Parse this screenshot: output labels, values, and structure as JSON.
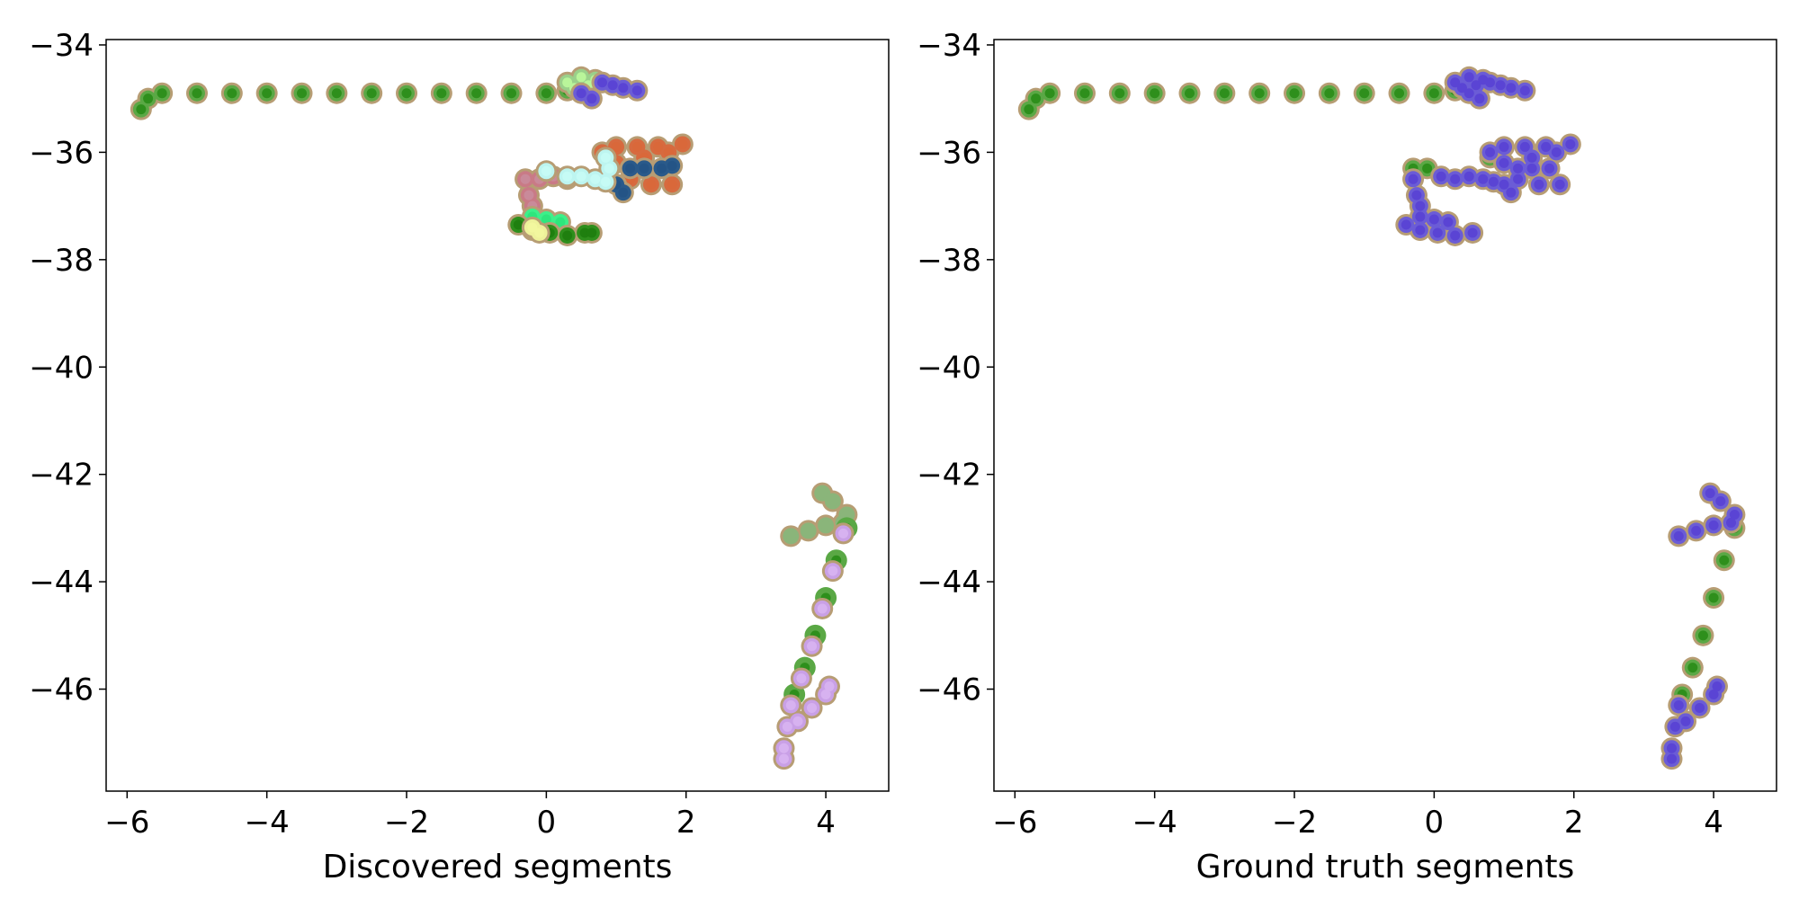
{
  "chart_data": [
    {
      "type": "scatter",
      "xlabel": "Discovered segments",
      "ylabel": "",
      "title": "",
      "xlim": [
        -6.3,
        4.9
      ],
      "ylim": [
        -47.9,
        -33.9
      ],
      "xticks": [
        -6,
        -4,
        -2,
        0,
        2,
        4
      ],
      "yticks": [
        -34,
        -36,
        -38,
        -40,
        -42,
        -44,
        -46
      ],
      "xtick_labels": [
        "−6",
        "−4",
        "−2",
        "0",
        "2",
        "4"
      ],
      "ytick_labels": [
        "−34",
        "−36",
        "−38",
        "−40",
        "−42",
        "−44",
        "−46"
      ],
      "grid": false,
      "series": [
        {
          "color": "#5aa845",
          "outline": "#b79d74",
          "inner": "#2e8f1c",
          "points": [
            [
              -5.8,
              -35.2
            ],
            [
              -5.7,
              -35.0
            ],
            [
              -5.5,
              -34.9
            ],
            [
              -5.0,
              -34.9
            ],
            [
              -4.5,
              -34.9
            ],
            [
              -4.0,
              -34.9
            ],
            [
              -3.5,
              -34.9
            ],
            [
              -3.0,
              -34.9
            ],
            [
              -2.5,
              -34.9
            ],
            [
              -2.0,
              -34.9
            ],
            [
              -1.5,
              -34.9
            ],
            [
              -1.0,
              -34.9
            ],
            [
              -0.5,
              -34.9
            ],
            [
              0.0,
              -34.9
            ],
            [
              0.3,
              -34.85
            ]
          ]
        },
        {
          "color": "#9ad08a",
          "outline": "#b79d74",
          "inner": "#b9f59a",
          "points": [
            [
              0.3,
              -34.7
            ],
            [
              0.4,
              -34.8
            ],
            [
              0.5,
              -34.6
            ],
            [
              0.6,
              -34.75
            ],
            [
              0.7,
              -34.65
            ],
            [
              0.8,
              -34.7
            ]
          ]
        },
        {
          "color": "#6b5cd6",
          "outline": "#b79d74",
          "inner": "#5a44d4",
          "points": [
            [
              0.8,
              -34.7
            ],
            [
              0.95,
              -34.75
            ],
            [
              1.1,
              -34.8
            ],
            [
              1.3,
              -34.85
            ],
            [
              0.5,
              -34.9
            ],
            [
              0.65,
              -35.0
            ]
          ]
        },
        {
          "color": "#d76a3f",
          "outline": "#b79d74",
          "inner": "#d9683a",
          "points": [
            [
              0.8,
              -36.0
            ],
            [
              1.0,
              -35.9
            ],
            [
              1.3,
              -35.9
            ],
            [
              1.6,
              -35.9
            ],
            [
              1.95,
              -35.85
            ],
            [
              1.0,
              -36.2
            ],
            [
              1.4,
              -36.1
            ],
            [
              1.75,
              -36.0
            ],
            [
              1.2,
              -36.5
            ],
            [
              1.5,
              -36.6
            ],
            [
              1.8,
              -36.6
            ]
          ]
        },
        {
          "color": "#2a5a8a",
          "outline": "#b79d74",
          "inner": "#245486",
          "points": [
            [
              1.2,
              -36.3
            ],
            [
              1.4,
              -36.3
            ],
            [
              1.65,
              -36.3
            ],
            [
              1.8,
              -36.25
            ],
            [
              1.0,
              -36.6
            ],
            [
              1.1,
              -36.75
            ]
          ]
        },
        {
          "color": "#c97a86",
          "outline": "#b79d74",
          "inner": "#c98a9a",
          "points": [
            [
              -0.3,
              -36.5
            ],
            [
              -0.25,
              -36.8
            ],
            [
              -0.2,
              -37.0
            ],
            [
              -0.1,
              -36.5
            ],
            [
              0.1,
              -36.45
            ],
            [
              0.3,
              -36.5
            ]
          ]
        },
        {
          "color": "#bdf5f0",
          "outline": "#b79d74",
          "inner": "#c6fbf5",
          "points": [
            [
              0.0,
              -36.35
            ],
            [
              0.3,
              -36.45
            ],
            [
              0.5,
              -36.45
            ],
            [
              0.7,
              -36.5
            ],
            [
              0.85,
              -36.55
            ],
            [
              0.9,
              -36.3
            ],
            [
              0.85,
              -36.1
            ]
          ]
        },
        {
          "color": "#3cf08a",
          "outline": "#b79d74",
          "inner": "#2ee67d",
          "points": [
            [
              -0.2,
              -37.2
            ],
            [
              0.0,
              -37.25
            ],
            [
              0.2,
              -37.3
            ]
          ]
        },
        {
          "color": "#2e8f1c",
          "outline": "#b79d74",
          "inner": "#1f7f0f",
          "points": [
            [
              -0.4,
              -37.35
            ],
            [
              -0.2,
              -37.45
            ],
            [
              0.05,
              -37.5
            ],
            [
              0.3,
              -37.55
            ],
            [
              0.55,
              -37.5
            ],
            [
              0.65,
              -37.5
            ]
          ]
        },
        {
          "color": "#eef29a",
          "outline": "#b79d74",
          "inner": "#f2f79e",
          "points": [
            [
              -0.2,
              -37.4
            ],
            [
              -0.1,
              -37.5
            ]
          ]
        },
        {
          "color": "#8ab57a",
          "outline": "#b79d74",
          "inner": "#8ab57a",
          "points": [
            [
              3.5,
              -43.15
            ],
            [
              3.75,
              -43.05
            ],
            [
              4.0,
              -42.95
            ],
            [
              4.25,
              -42.9
            ],
            [
              3.95,
              -42.35
            ],
            [
              4.1,
              -42.5
            ],
            [
              4.3,
              -42.75
            ]
          ]
        },
        {
          "color": "#5aa845",
          "outline": "#5aa845",
          "inner": "#2e8f1c",
          "points": [
            [
              4.3,
              -43.0
            ],
            [
              4.15,
              -43.6
            ],
            [
              4.0,
              -44.3
            ],
            [
              3.85,
              -45.0
            ],
            [
              3.7,
              -45.6
            ],
            [
              3.55,
              -46.1
            ]
          ]
        },
        {
          "color": "#c9a0e6",
          "outline": "#b79d74",
          "inner": "#d7b2f0",
          "points": [
            [
              4.25,
              -43.1
            ],
            [
              4.1,
              -43.8
            ],
            [
              3.95,
              -44.5
            ],
            [
              3.8,
              -45.2
            ],
            [
              3.65,
              -45.8
            ],
            [
              3.5,
              -46.3
            ],
            [
              3.45,
              -46.7
            ],
            [
              3.4,
              -47.1
            ],
            [
              3.4,
              -47.3
            ],
            [
              3.6,
              -46.6
            ],
            [
              3.8,
              -46.35
            ],
            [
              4.0,
              -46.1
            ],
            [
              4.05,
              -45.95
            ]
          ]
        }
      ]
    },
    {
      "type": "scatter",
      "xlabel": "Ground truth segments",
      "ylabel": "",
      "title": "",
      "xlim": [
        -6.3,
        4.9
      ],
      "ylim": [
        -47.9,
        -33.9
      ],
      "xticks": [
        -6,
        -4,
        -2,
        0,
        2,
        4
      ],
      "yticks": [
        -34,
        -36,
        -38,
        -40,
        -42,
        -44,
        -46
      ],
      "xtick_labels": [
        "−6",
        "−4",
        "−2",
        "0",
        "2",
        "4"
      ],
      "ytick_labels": [
        "−34",
        "−36",
        "−38",
        "−40",
        "−42",
        "−44",
        "−46"
      ],
      "grid": false,
      "series": [
        {
          "color": "#5aa845",
          "outline": "#b79d74",
          "inner": "#2e8f1c",
          "points": [
            [
              -5.8,
              -35.2
            ],
            [
              -5.7,
              -35.0
            ],
            [
              -5.5,
              -34.9
            ],
            [
              -5.0,
              -34.9
            ],
            [
              -4.5,
              -34.9
            ],
            [
              -4.0,
              -34.9
            ],
            [
              -3.5,
              -34.9
            ],
            [
              -3.0,
              -34.9
            ],
            [
              -2.5,
              -34.9
            ],
            [
              -2.0,
              -34.9
            ],
            [
              -1.5,
              -34.9
            ],
            [
              -1.0,
              -34.9
            ],
            [
              -0.5,
              -34.9
            ],
            [
              0.0,
              -34.9
            ],
            [
              0.3,
              -34.85
            ],
            [
              -0.3,
              -36.3
            ],
            [
              -0.1,
              -36.3
            ],
            [
              0.8,
              -36.1
            ],
            [
              4.3,
              -43.0
            ],
            [
              4.15,
              -43.6
            ],
            [
              4.0,
              -44.3
            ],
            [
              3.85,
              -45.0
            ],
            [
              3.7,
              -45.6
            ],
            [
              3.55,
              -46.1
            ]
          ]
        },
        {
          "color": "#6b5cd6",
          "outline": "#b79d74",
          "inner": "#5a44d4",
          "points": [
            [
              0.3,
              -34.7
            ],
            [
              0.4,
              -34.8
            ],
            [
              0.5,
              -34.6
            ],
            [
              0.6,
              -34.75
            ],
            [
              0.7,
              -34.65
            ],
            [
              0.8,
              -34.7
            ],
            [
              0.95,
              -34.75
            ],
            [
              1.1,
              -34.8
            ],
            [
              1.3,
              -34.85
            ],
            [
              0.5,
              -34.9
            ],
            [
              0.65,
              -35.0
            ],
            [
              0.8,
              -36.0
            ],
            [
              1.0,
              -35.9
            ],
            [
              1.3,
              -35.9
            ],
            [
              1.6,
              -35.9
            ],
            [
              1.95,
              -35.85
            ],
            [
              1.0,
              -36.2
            ],
            [
              1.4,
              -36.1
            ],
            [
              1.75,
              -36.0
            ],
            [
              1.2,
              -36.5
            ],
            [
              1.5,
              -36.6
            ],
            [
              1.8,
              -36.6
            ],
            [
              1.2,
              -36.3
            ],
            [
              1.4,
              -36.3
            ],
            [
              1.65,
              -36.3
            ],
            [
              1.0,
              -36.6
            ],
            [
              1.1,
              -36.75
            ],
            [
              -0.3,
              -36.5
            ],
            [
              -0.25,
              -36.8
            ],
            [
              -0.2,
              -37.0
            ],
            [
              0.1,
              -36.45
            ],
            [
              0.3,
              -36.5
            ],
            [
              0.5,
              -36.45
            ],
            [
              0.7,
              -36.5
            ],
            [
              0.85,
              -36.55
            ],
            [
              -0.2,
              -37.2
            ],
            [
              0.0,
              -37.25
            ],
            [
              0.2,
              -37.3
            ],
            [
              -0.4,
              -37.35
            ],
            [
              -0.2,
              -37.45
            ],
            [
              0.05,
              -37.5
            ],
            [
              0.3,
              -37.55
            ],
            [
              0.55,
              -37.5
            ],
            [
              3.5,
              -43.15
            ],
            [
              3.75,
              -43.05
            ],
            [
              4.0,
              -42.95
            ],
            [
              4.25,
              -42.9
            ],
            [
              3.95,
              -42.35
            ],
            [
              4.1,
              -42.5
            ],
            [
              4.3,
              -42.75
            ],
            [
              3.5,
              -46.3
            ],
            [
              3.45,
              -46.7
            ],
            [
              3.4,
              -47.1
            ],
            [
              3.4,
              -47.3
            ],
            [
              3.6,
              -46.6
            ],
            [
              3.8,
              -46.35
            ],
            [
              4.0,
              -46.1
            ],
            [
              4.05,
              -45.95
            ]
          ]
        }
      ]
    }
  ]
}
